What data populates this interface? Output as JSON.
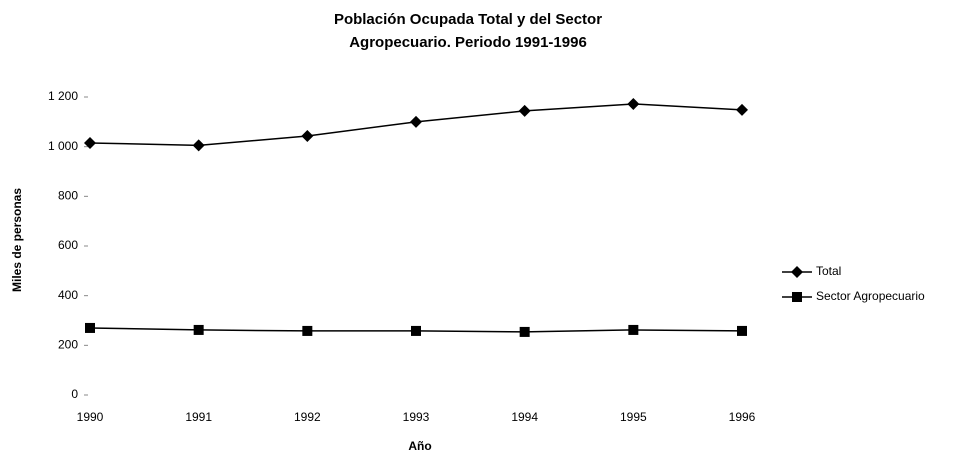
{
  "chart_data": {
    "type": "line",
    "title": [
      "Población Ocupada Total y del Sector",
      "Agropecuario.  Periodo 1991-1996"
    ],
    "x_label": "Año",
    "y_label": "Miles de personas",
    "categories": [
      "1990",
      "1991",
      "1992",
      "1993",
      "1994",
      "1995",
      "1996"
    ],
    "series": [
      {
        "name": "Total",
        "color": "#000000",
        "marker": "diamond",
        "values": [
          1015,
          1005,
          1043,
          1100,
          1144,
          1172,
          1148
        ]
      },
      {
        "name": "Sector  Agropecuario",
        "color": "#000000",
        "marker": "square",
        "values": [
          270,
          262,
          258,
          258,
          254,
          262,
          258
        ]
      }
    ],
    "ylim": [
      0,
      1200
    ],
    "yticks": [
      0,
      200,
      400,
      600,
      800,
      {
        "value": 1000,
        "label": "1 000"
      },
      {
        "value": 1200,
        "label": "1 200"
      }
    ],
    "grid": false,
    "legend": "right"
  }
}
